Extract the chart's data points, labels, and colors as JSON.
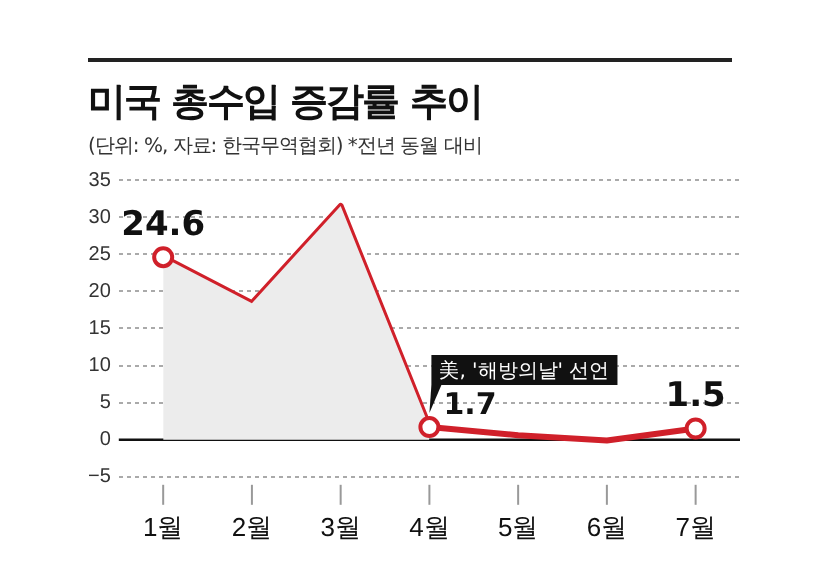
{
  "chart_data": {
    "type": "line",
    "title": "미국 총수입 증감률 추이",
    "subtitle": "(단위: %, 자료: 한국무역협회)  *전년 동월 대비",
    "categories": [
      "1월",
      "2월",
      "3월",
      "4월",
      "5월",
      "6월",
      "7월"
    ],
    "series": [
      {
        "type": "area",
        "color": "#ececec",
        "values": [
          24.6,
          18.4,
          31.5,
          1.7,
          null,
          null,
          null
        ]
      },
      {
        "color": "#d0202a",
        "values": [
          24.6,
          18.4,
          31.5,
          1.7,
          0.6,
          -0.1,
          1.5
        ],
        "value_labels": [
          "24.6",
          null,
          null,
          "1.7",
          null,
          null,
          "1.5"
        ]
      }
    ],
    "annotations": [
      {
        "text": "美, '해방의날' 선언",
        "x": "4월",
        "y": 1.7
      }
    ],
    "ylim": [
      -5,
      35
    ],
    "yticks": [
      -5,
      0,
      5,
      10,
      15,
      20,
      25,
      30,
      35
    ],
    "grid": "y",
    "legend": false,
    "line_style": "solid"
  }
}
